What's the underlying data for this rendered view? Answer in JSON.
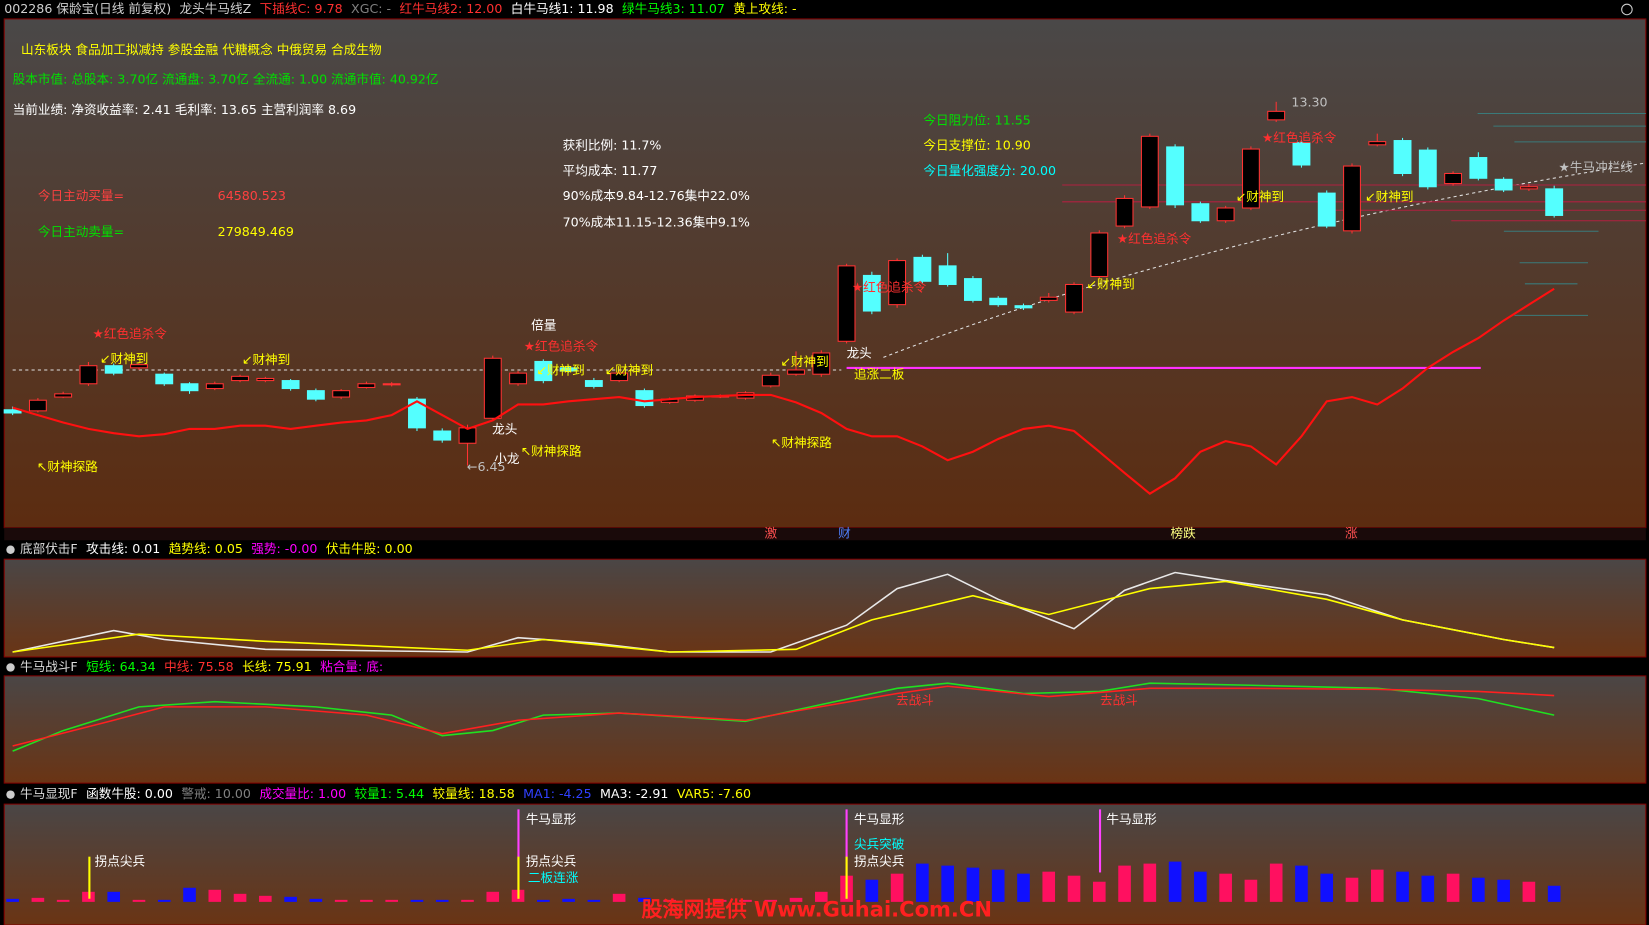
{
  "header": {
    "items": [
      {
        "text": "002286 保龄宝(日线 前复权)",
        "color": "#d0d0d0"
      },
      {
        "text": "龙头牛马线Z",
        "color": "#d0d0d0"
      },
      {
        "text": "下插线C: 9.78",
        "color": "#ff3030"
      },
      {
        "text": "XGC: -",
        "color": "#808080"
      },
      {
        "text": "红牛马线2: 12.00",
        "color": "#ff3030"
      },
      {
        "text": "白牛马线1: 11.98",
        "color": "#ffffff"
      },
      {
        "text": "绿牛马线3: 11.07",
        "color": "#00ff00"
      },
      {
        "text": "黄上攻线: -",
        "color": "#ffff00"
      }
    ]
  },
  "info": [
    {
      "text": "山东板块  食品加工拟减持  参股金融  代糖概念  中俄贸易  合成生物",
      "color": "#ffff00"
    },
    {
      "text": "股本市值: 总股本: 3.70亿 流通盘: 3.70亿 全流通: 1.00 流通市值: 40.92亿",
      "color": "#00e000"
    },
    {
      "text": "当前业绩: 净资收益率: 2.41 毛利率: 13.65 主营利润率 8.69",
      "color": "#ffffff"
    },
    {
      "text": "今日主动买量=",
      "color": "#ff4040"
    },
    {
      "text": "64580.523",
      "color": "#ff4040"
    },
    {
      "text": "今日主动卖量=",
      "color": "#00e000"
    },
    {
      "text": "279849.469",
      "color": "#ffff00"
    },
    {
      "text": "获利比例: 11.7%",
      "color": "#ffffff"
    },
    {
      "text": "平均成本: 11.77",
      "color": "#ffffff"
    },
    {
      "text": "90%成本9.84-12.76集中22.0%",
      "color": "#ffffff"
    },
    {
      "text": "70%成本11.15-12.36集中9.1%",
      "color": "#ffffff"
    },
    {
      "text": "今日阻力位: 11.55",
      "color": "#00e000"
    },
    {
      "text": "今日支撑位: 10.90",
      "color": "#ffff00"
    },
    {
      "text": "今日量化强度分: 20.00",
      "color": "#00ffff"
    }
  ],
  "chart_data": [
    {
      "type": "candlestick",
      "up_color": "#ff3232",
      "down_color": "#54ffff",
      "ylim": [
        5.28,
        14.92
      ],
      "open": [
        7.5,
        7.48,
        7.74,
        7.99,
        8.33,
        8.29,
        8.17,
        7.99,
        7.9,
        8.05,
        8.05,
        8.05,
        7.86,
        7.74,
        7.92,
        7.97,
        7.7,
        7.1,
        6.87,
        7.34,
        7.99,
        8.41,
        8.29,
        8.05,
        8.05,
        7.86,
        7.64,
        7.68,
        7.74,
        7.72,
        7.95,
        8.17,
        8.17,
        8.79,
        10.03,
        9.48,
        10.37,
        10.21,
        9.97,
        9.6,
        9.46,
        9.56,
        9.34,
        10.01,
        10.96,
        11.32,
        12.45,
        11.38,
        11.06,
        11.3,
        12.96,
        12.53,
        11.58,
        10.87,
        12.49,
        12.57,
        12.39,
        11.76,
        12.25,
        11.84,
        11.66,
        11.66
      ],
      "close": [
        7.44,
        7.68,
        7.8,
        8.33,
        8.19,
        8.35,
        7.99,
        7.86,
        7.99,
        8.13,
        8.09,
        7.9,
        7.7,
        7.86,
        7.99,
        7.99,
        7.16,
        6.93,
        7.16,
        8.47,
        8.19,
        8.05,
        8.23,
        7.94,
        8.19,
        7.58,
        7.7,
        7.76,
        7.76,
        7.82,
        8.15,
        8.25,
        8.57,
        10.21,
        9.36,
        10.31,
        9.92,
        9.86,
        9.56,
        9.48,
        9.42,
        9.62,
        9.86,
        10.83,
        11.48,
        12.65,
        11.36,
        11.06,
        11.3,
        12.41,
        13.12,
        12.11,
        10.96,
        12.09,
        12.55,
        11.95,
        11.7,
        11.95,
        11.86,
        11.64,
        11.7,
        11.16
      ],
      "high": [
        7.56,
        7.72,
        7.84,
        8.4,
        8.37,
        8.38,
        8.2,
        8.02,
        8.03,
        8.16,
        8.12,
        8.08,
        7.9,
        7.89,
        8.03,
        8.02,
        7.74,
        7.15,
        7.22,
        8.52,
        8.23,
        8.45,
        8.33,
        8.1,
        8.22,
        7.9,
        7.73,
        7.79,
        7.79,
        7.85,
        8.2,
        8.6,
        8.62,
        10.25,
        10.1,
        10.35,
        10.42,
        10.45,
        10.02,
        9.64,
        9.5,
        9.7,
        9.9,
        10.88,
        11.54,
        12.7,
        12.5,
        11.42,
        11.34,
        12.46,
        13.3,
        12.58,
        11.63,
        12.14,
        12.7,
        12.62,
        12.44,
        11.99,
        12.35,
        11.88,
        11.75,
        11.72
      ],
      "low": [
        7.4,
        7.45,
        7.72,
        7.95,
        8.15,
        8.25,
        7.95,
        7.8,
        7.87,
        8.02,
        8.02,
        7.86,
        7.66,
        7.7,
        7.9,
        7.94,
        7.1,
        6.88,
        6.45,
        7.3,
        7.95,
        8.0,
        8.2,
        7.9,
        8.02,
        7.54,
        7.61,
        7.65,
        7.72,
        7.69,
        7.92,
        8.14,
        8.12,
        8.75,
        9.3,
        9.42,
        9.88,
        9.82,
        9.52,
        9.44,
        9.38,
        9.52,
        9.3,
        9.96,
        10.92,
        11.28,
        11.3,
        11.02,
        11.02,
        11.26,
        12.92,
        12.06,
        10.92,
        10.82,
        12.46,
        11.9,
        11.65,
        11.72,
        11.82,
        11.6,
        11.62,
        11.12
      ],
      "lines": [
        {
          "color": "#ff1010",
          "values": [
            7.54,
            7.4,
            7.26,
            7.14,
            7.06,
            7.0,
            7.04,
            7.14,
            7.14,
            7.2,
            7.2,
            7.14,
            7.2,
            7.26,
            7.3,
            7.4,
            7.66,
            7.4,
            7.14,
            7.3,
            7.6,
            7.6,
            7.66,
            7.7,
            7.74,
            7.66,
            7.7,
            7.74,
            7.76,
            7.78,
            7.78,
            7.64,
            7.44,
            7.14,
            7.0,
            7.0,
            6.81,
            6.55,
            6.71,
            6.95,
            7.14,
            7.2,
            7.1,
            6.71,
            6.31,
            5.92,
            6.21,
            6.71,
            6.91,
            6.81,
            6.47,
            7.0,
            7.66,
            7.74,
            7.6,
            7.9,
            8.29,
            8.59,
            8.85,
            9.18,
            9.48,
            9.78
          ]
        }
      ],
      "annotations": [
        {
          "text": "★红色追杀令",
          "color": "#ff3030"
        },
        {
          "text": "↙财神到",
          "color": "#ffff00"
        },
        {
          "text": "↖财神探路",
          "color": "#ffff00"
        },
        {
          "text": "↙财神到",
          "color": "#ffff00"
        },
        {
          "text": "倍量",
          "color": "#ffffff"
        },
        {
          "text": "★红色追杀令",
          "color": "#ff3030"
        },
        {
          "text": "↙财神到",
          "color": "#ffff00"
        },
        {
          "text": "↙财神到",
          "color": "#ffff00"
        },
        {
          "text": "龙头",
          "color": "#ffffff"
        },
        {
          "text": "小龙",
          "color": "#ffffff"
        },
        {
          "text": "↖财神探路",
          "color": "#ffff00"
        },
        {
          "text": "↖财神探路",
          "color": "#ffff00"
        },
        {
          "text": "↙财神到",
          "color": "#ffff00"
        },
        {
          "text": "龙头",
          "color": "#ffffff"
        },
        {
          "text": "追涨二板",
          "color": "#ffff00"
        },
        {
          "text": "★红色追杀令",
          "color": "#ff3030"
        },
        {
          "text": "↙财神到",
          "color": "#ffff00"
        },
        {
          "text": "★红色追杀令",
          "color": "#ff3030"
        },
        {
          "text": "↙财神到",
          "color": "#ffff00"
        },
        {
          "text": "★红色追杀令",
          "color": "#ff3030"
        },
        {
          "text": "↙财神到",
          "color": "#ffff00"
        },
        {
          "text": "13.30",
          "color": "#c0c0c0"
        },
        {
          "text": "←6.45",
          "color": "#c0c0c0"
        },
        {
          "text": "★牛马冲栏线",
          "color": "#c0c0c0"
        }
      ],
      "markers": [
        {
          "text": "激",
          "color": "#ff5050"
        },
        {
          "text": "财",
          "color": "#5080ff"
        },
        {
          "text": "榜跌",
          "color": "#ffff80"
        },
        {
          "text": "涨",
          "color": "#ff5050"
        }
      ]
    },
    {
      "type": "line",
      "ylim": [
        0,
        100
      ],
      "title_items": [
        {
          "text": "底部伏击F",
          "color": "#dddddd"
        },
        {
          "text": "攻击线: 0.01",
          "color": "#ffffff"
        },
        {
          "text": "趋势线: 0.05",
          "color": "#ffff00"
        },
        {
          "text": "强势: -0.00",
          "color": "#ff00ff"
        },
        {
          "text": "伏击牛股: 0.00",
          "color": "#ffff00"
        }
      ],
      "series": [
        {
          "color": "#e8e8e8",
          "x": [
            0,
            4,
            6,
            10,
            18,
            20,
            23,
            26,
            30,
            33,
            35,
            37,
            39,
            42,
            44,
            46,
            48,
            52,
            55,
            59,
            61
          ],
          "values": [
            2,
            26,
            16,
            5,
            2,
            18,
            12,
            2,
            2,
            32,
            73,
            89,
            61,
            28,
            71,
            91,
            82,
            66,
            38,
            16,
            7
          ]
        },
        {
          "color": "#ffff00",
          "x": [
            0,
            5,
            10,
            18,
            21,
            26,
            31,
            34,
            38,
            41,
            45,
            48,
            52,
            55,
            59,
            61
          ],
          "values": [
            2,
            22,
            14,
            4,
            16,
            2,
            5,
            38,
            65,
            44,
            73,
            81,
            61,
            38,
            16,
            7
          ]
        }
      ]
    },
    {
      "type": "line",
      "ylim": [
        0,
        100
      ],
      "title_items": [
        {
          "text": "牛马战斗F",
          "color": "#dddddd"
        },
        {
          "text": "短线: 64.34",
          "color": "#00ff00"
        },
        {
          "text": "中线: 75.58",
          "color": "#ff3030"
        },
        {
          "text": "长线: 75.91",
          "color": "#ffff00"
        },
        {
          "text": "粘合量: 底:",
          "color": "#ff00ff"
        }
      ],
      "series": [
        {
          "color": "#20e020",
          "x": [
            0,
            2,
            5,
            8,
            12,
            15,
            17,
            19,
            21,
            24,
            29,
            31,
            35,
            37,
            40,
            43,
            45,
            49,
            54,
            58,
            61
          ],
          "values": [
            31,
            51,
            74,
            79,
            74,
            66,
            46,
            51,
            66,
            68,
            60,
            71,
            92,
            97,
            87,
            89,
            97,
            95,
            92,
            82,
            66
          ]
        },
        {
          "color": "#ff2020",
          "x": [
            0,
            4,
            6,
            10,
            14,
            17,
            20,
            24,
            29,
            31,
            35,
            37,
            41,
            45,
            49,
            54,
            58,
            61
          ],
          "values": [
            36,
            61,
            74,
            74,
            66,
            48,
            61,
            68,
            61,
            70,
            87,
            94,
            84,
            92,
            92,
            91,
            89,
            85
          ]
        }
      ],
      "annotations": [
        {
          "text": "去战斗",
          "color": "#ff3030"
        },
        {
          "text": "去战斗",
          "color": "#ff3030"
        }
      ]
    },
    {
      "type": "bar",
      "ylim": [
        0,
        95
      ],
      "up_color": "#ff1060",
      "down_color": "#1010ff",
      "title_items": [
        {
          "text": "牛马显现F",
          "color": "#dddddd"
        },
        {
          "text": "函数牛股: 0.00",
          "color": "#ffffff"
        },
        {
          "text": "警戒: 10.00",
          "color": "#808080"
        },
        {
          "text": "成交量比: 1.00",
          "color": "#ff00ff"
        },
        {
          "text": "较量1: 5.44",
          "color": "#00ff00"
        },
        {
          "text": "较量线: 18.58",
          "color": "#ffff00"
        },
        {
          "text": "MA1: -4.25",
          "color": "#3040ff"
        },
        {
          "text": "MA3: -2.91",
          "color": "#ffffff"
        },
        {
          "text": "VAR5: -7.60",
          "color": "#ffff00"
        }
      ],
      "values": [
        3,
        4,
        2,
        10,
        10,
        2,
        2,
        14,
        12,
        8,
        6,
        5,
        3,
        2,
        2,
        2,
        2,
        2,
        2,
        10,
        12,
        2,
        3,
        2,
        8,
        4,
        2,
        2,
        2,
        2,
        2,
        4,
        10,
        26,
        22,
        28,
        38,
        36,
        34,
        32,
        28,
        30,
        26,
        20,
        36,
        38,
        40,
        30,
        28,
        22,
        38,
        36,
        28,
        24,
        32,
        30,
        26,
        28,
        24,
        22,
        20,
        16
      ],
      "annotations": [
        {
          "text": "牛马显形",
          "color": "#ffffff"
        },
        {
          "text": "牛马显形",
          "color": "#ffffff"
        },
        {
          "text": "牛马显形",
          "color": "#ffffff"
        },
        {
          "text": "拐点尖兵",
          "color": "#ffffff"
        },
        {
          "text": "拐点尖兵",
          "color": "#ffffff"
        },
        {
          "text": "拐点尖兵",
          "color": "#ffffff"
        },
        {
          "text": "二板连涨",
          "color": "#00ffff"
        },
        {
          "text": "尖兵突破",
          "color": "#00ffff"
        },
        {
          "text": "股海网提供 Www.Guhai.Com.CN",
          "color": "#ff2020"
        }
      ]
    }
  ]
}
